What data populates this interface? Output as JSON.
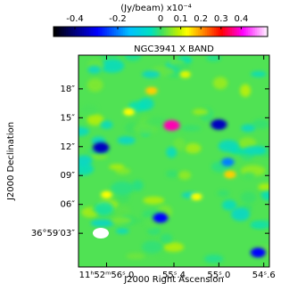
{
  "chart_data": {
    "type": "image",
    "title": "NGC3941 X BAND",
    "xlabel": "J2000 Right Ascension",
    "ylabel": "J2000 Declination",
    "colorbar_label": "(Jy/beam)  x10⁻⁴",
    "clim": [
      -0.5,
      0.5
    ],
    "cticks": [
      -0.4,
      -0.2,
      0,
      0.1,
      0.2,
      0.3,
      0.4
    ],
    "xlim": [
      56.25,
      54.55
    ],
    "xticks": [
      {
        "value": 56.0,
        "label": "11ʰ52ᵐ56ˢ.0"
      },
      {
        "value": 55.4,
        "label": "55ˢ.4"
      },
      {
        "value": 55.0,
        "label": "55ˢ.0"
      },
      {
        "value": 54.6,
        "label": "54ˢ.6"
      }
    ],
    "ylim": [
      -0.5,
      21.5
    ],
    "yticks": [
      {
        "value": 18,
        "label": "18″"
      },
      {
        "value": 15,
        "label": "15″"
      },
      {
        "value": 12,
        "label": "12″"
      },
      {
        "value": 9,
        "label": "09″"
      },
      {
        "value": 6,
        "label": "06″"
      },
      {
        "value": 3,
        "label": "36°59′03″"
      }
    ],
    "features": [
      {
        "x": 55.42,
        "y": 14.2,
        "value": 0.35
      },
      {
        "x": 55.0,
        "y": 14.3,
        "value": -0.35
      },
      {
        "x": 56.05,
        "y": 11.9,
        "value": -0.35
      },
      {
        "x": 55.52,
        "y": 4.6,
        "value": -0.3
      },
      {
        "x": 55.6,
        "y": 17.8,
        "value": 0.15
      },
      {
        "x": 54.9,
        "y": 9.1,
        "value": 0.15
      },
      {
        "x": 55.8,
        "y": 15.6,
        "value": 0.12
      },
      {
        "x": 55.2,
        "y": 6.8,
        "value": 0.12
      },
      {
        "x": 54.92,
        "y": 10.4,
        "value": -0.2
      },
      {
        "x": 54.65,
        "y": 1.0,
        "value": -0.3
      },
      {
        "x": 56.0,
        "y": 7.0,
        "value": 0.12
      },
      {
        "x": 55.3,
        "y": 19.5,
        "value": 0.1
      }
    ]
  }
}
